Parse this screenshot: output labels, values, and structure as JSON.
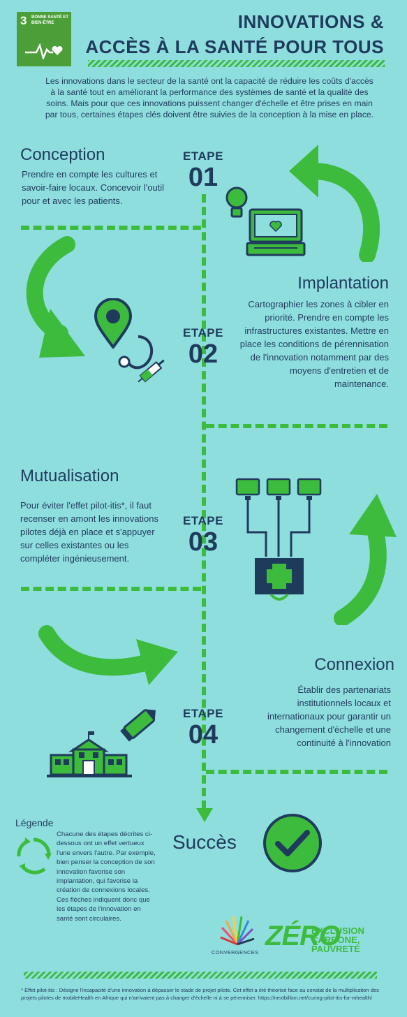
{
  "sdg": {
    "number": "3",
    "label": "BONNE SANTÉ ET BIEN-ÊTRE",
    "color": "#4c9f38"
  },
  "title": {
    "line1": "INNOVATIONS &",
    "line2": "ACCÈS À LA SANTÉ POUR TOUS"
  },
  "intro": "Les innovations dans le secteur de la santé ont la capacité de réduire les coûts d'accès à la santé tout en améliorant la performance des systèmes de santé et la qualité des soins. Mais pour que ces innovations puissent changer d'échelle et être prises en main par tous, certaines étapes clés doivent être suivies de la conception à la mise en place.",
  "steps": [
    {
      "label": "ETAPE",
      "number": "01",
      "heading": "Conception",
      "text": "Prendre en compte les cultures et savoir-faire locaux. Concevoir l'outil pour et avec les patients."
    },
    {
      "label": "ETAPE",
      "number": "02",
      "heading": "Implantation",
      "text": "Cartographier les zones à cibler en priorité. Prendre en compte les infrastructures existantes. Mettre en place les conditions de pérennisation de l'innovation notamment par des moyens d'entretien et de maintenance."
    },
    {
      "label": "ETAPE",
      "number": "03",
      "heading": "Mutualisation",
      "text": "Pour éviter l'effet pilot-itis*, il faut recenser en amont les innovations pilotes déjà en place et s'appuyer sur celles existantes ou les compléter ingénieusement."
    },
    {
      "label": "ETAPE",
      "number": "04",
      "heading": "Connexion",
      "text": "Établir des partenariats institutionnels locaux et internationaux pour garantir un changement d'échelle et une continuité à l'innovation"
    }
  ],
  "success": "Succès",
  "legend": {
    "title": "Légende",
    "text": "Chacune des étapes décrites ci-dessous ont un effet vertueux l'une envers l'autre. Par exemple, bien penser la conception de son innovation favorise son implantation, qui favorise la création de connexions locales. Ces flèches indiquent donc que les étapes de l'innovation en santé sont circulaires."
  },
  "logos": {
    "convergences": "CONVERGENCES",
    "zero": "ZÉRO",
    "zero_lines": [
      "EXCLUSION",
      "CARBONE,",
      "PAUVRETÉ"
    ]
  },
  "footnote": "* Effet pilot-itis : Désigne l'incapacité d'une innovation à dépasser le stade de projet pilote. Cet effet a été théorisé face au constat de la multiplication des projets pilotes de mobileHealth en Afrique qui n'arrivaient pas à changer d'échelle ni à se pérenniser. https://nextbillion.net/curing-pilot-itis-for-mhealth/",
  "colors": {
    "background": "#8fdede",
    "green": "#3dbb3d",
    "navy": "#1f3b5c"
  },
  "icons": [
    "lightbulb-icon",
    "laptop-icon",
    "map-pin-icon",
    "stethoscope-icon",
    "syringe-icon",
    "network-icon",
    "medical-kit-icon",
    "pencil-icon",
    "school-icon",
    "check-icon",
    "cycle-icon"
  ]
}
